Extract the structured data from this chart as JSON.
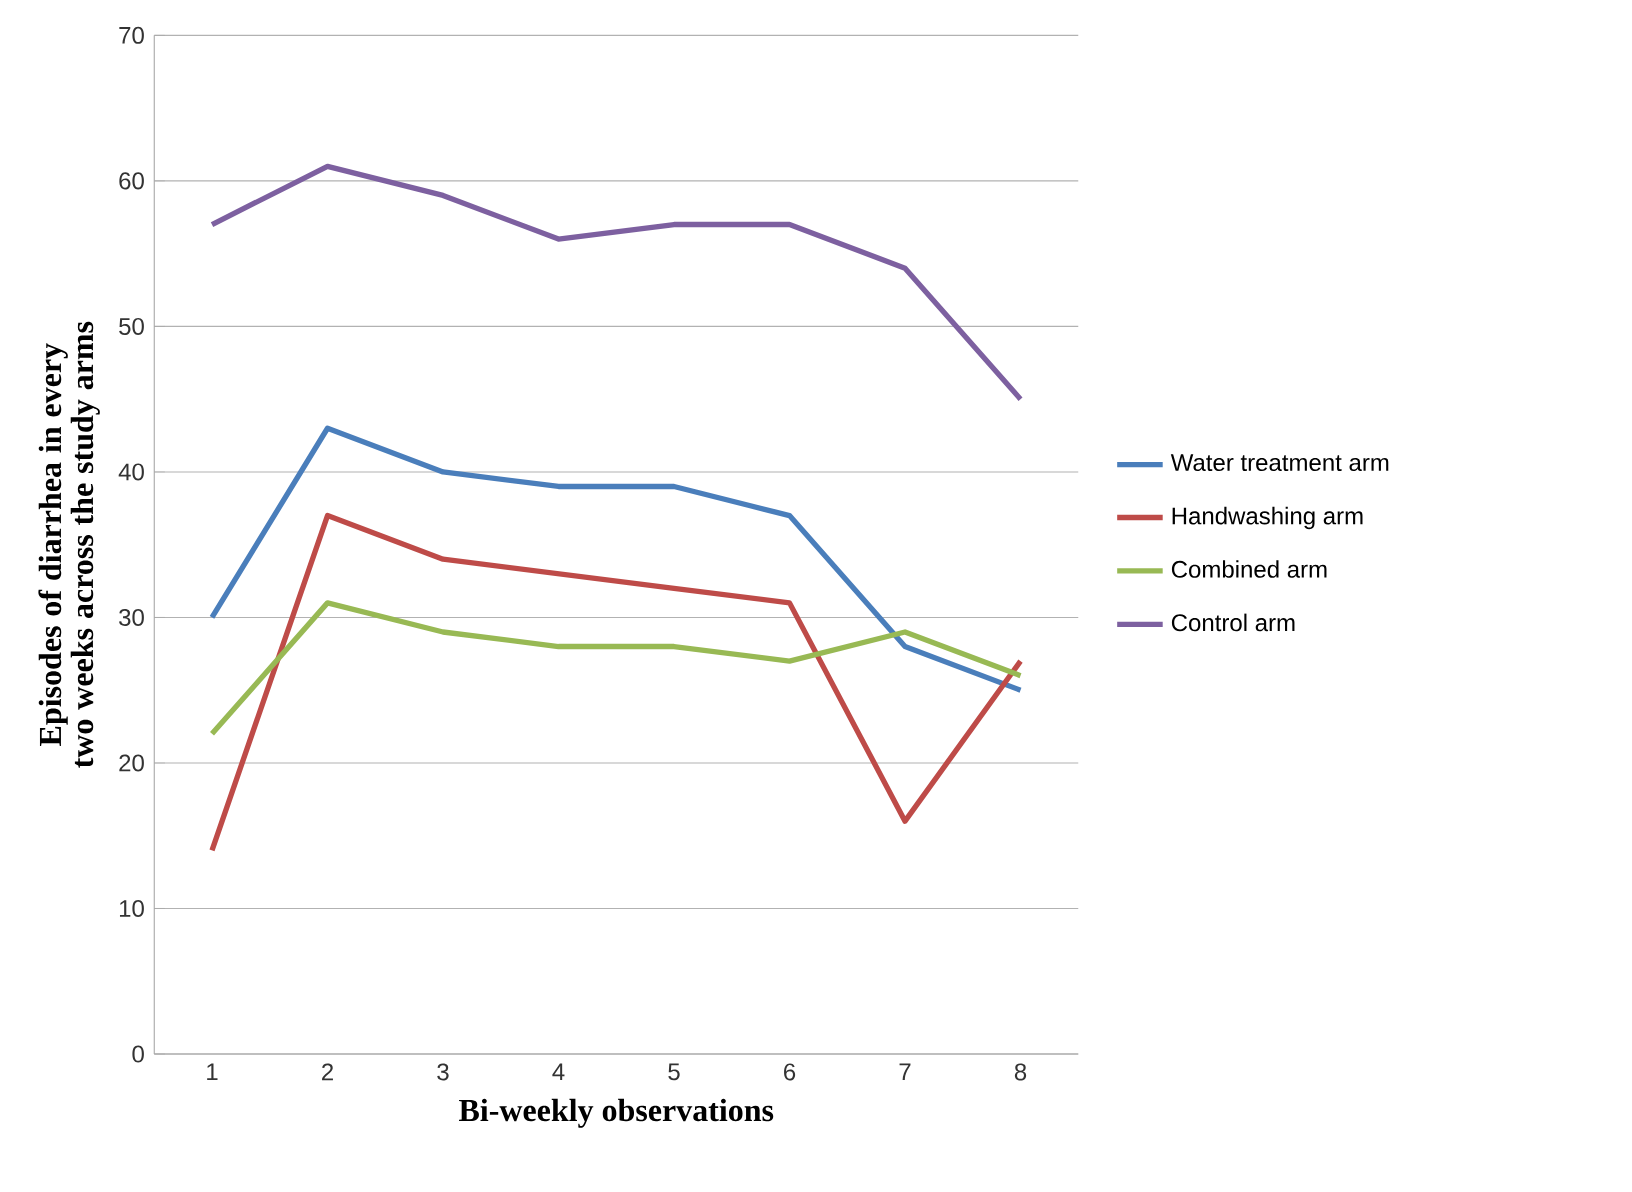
{
  "chart_data": {
    "type": "line",
    "xlabel": "Bi-weekly observations",
    "ylabel": "Episodes of diarrhea  in every two weeks across the study arms",
    "categories": [
      "1",
      "2",
      "3",
      "4",
      "5",
      "6",
      "7",
      "8"
    ],
    "series": [
      {
        "name": "Water treatment arm",
        "color": "#4a7ebb",
        "values": [
          30,
          43,
          40,
          39,
          39,
          37,
          28,
          25
        ]
      },
      {
        "name": "Handwashing arm",
        "color": "#be4b48",
        "values": [
          14,
          37,
          34,
          33,
          32,
          31,
          16,
          27
        ]
      },
      {
        "name": "Combined arm",
        "color": "#98b954",
        "values": [
          22,
          31,
          29,
          28,
          28,
          27,
          29,
          26
        ]
      },
      {
        "name": "Control arm",
        "color": "#7d60a0",
        "values": [
          57,
          61,
          59,
          56,
          57,
          57,
          54,
          45
        ]
      }
    ],
    "ylim": [
      0,
      70
    ],
    "yticks": [
      0,
      10,
      20,
      30,
      40,
      50,
      60,
      70
    ],
    "grid": "y",
    "legend": "right",
    "marker": "none",
    "line_style": "solid"
  }
}
